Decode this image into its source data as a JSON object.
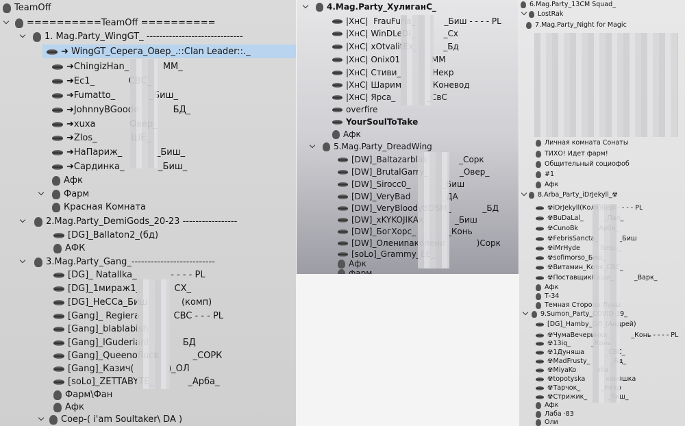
{
  "left_panel": {
    "rows": [
      "TeamOff",
      "==========TeamOff ==========",
      "1. Mag.Party_WingGT_ ------------------------------",
      "➜ WingGT_Серега_Овер_.::Clan Leader::._",
      "➜ChingizHan_            MM_",
      "➜Ес1_            СВС_",
      "➜Fumatto_            _Биш_",
      "➜JohnnyBGoode            БД_",
      "➜xuxa            Овер_",
      "➜Zlos_            ШЕ_",
      "➜НаПариж_            _Биш_",
      "➜Сардинка_            _Биш_",
      "Афк",
      "Фарм",
      "Красная Комната",
      "2.Mag.Party_DemiGods_20-23 -----------------",
      "[DG]_Ballaton2_(бд)",
      "АФК",
      "3.Mag.Party_Gang_--------------------------",
      "[DG]_ Natallka_            - - - - PL",
      "[DG]_1мираж1_            СХ_",
      "[DG]_НеССа_Биш            (комп)",
      "[Gang]_ Regiera            CBC - - - PL",
      "[Gang]_blablabish",
      "[Gang]_lGuderianl            БД",
      "[Gang]_Queenofluck            _СОРК",
      "[Gang]_Казич(            )_ОЛ",
      "[soLo]_ZETTABYTE_            _Арба_",
      "Фарм\\Фан",
      "Афк",
      "Соер-( i'am Soultaker\\ DA )"
    ]
  },
  "middle_panel": {
    "rows": [
      "4.Mag.Party_ХулиганС_",
      "|ХнС|  FrauFuria_           _Биш - - - - PL",
      "|ХнС| WinDLeDi_           _Сх",
      "|ХнС| xOtvalitEx_          _Бд",
      "|ХнС| Onix01            MM",
      "|ХнС| Стиви_            Некр",
      "|ХнС| Шарим            Коневод",
      "|ХнС| Ярса_            _СвС",
      "overfire",
      "YourSoulToTake",
      "Афк",
      "5.Mag.Party_DreadWing",
      "[DW]_Baltazarblak            _Сорк",
      "[DW]_BrutalGarry_            _Овер_",
      "[DW]_Sirocc0_            _Биш",
      "[DW]_VeryBad            _ДА",
      "[DW]_VeryBloodyBDSM_            _БД",
      "[DW]_xKYKOJIKAx            _Биш",
      "[DW]_БогХорс_            _Конь",
      "[DW]_Олениnаколени            )Сорк",
      "[soLo]_Grammy_EE_",
      "Афк",
      "фарм"
    ]
  },
  "right_panel": {
    "rows": [
      "6.Mag.Party_13CM Squad_",
      "LostRak",
      "7.Mag.Party_Night for Magic",
      "Личная комната Сонаты",
      "ТИХО! Идет фарм!",
      "Общительный социофоб",
      "#1",
      "Афк",
      "8.Arba_Party_iDrJekyll_☢",
      "☢iDrJekyll(Коля)Берс- - - - PL",
      "☢BuDaLal_          _Пал_",
      "☢CunoBk          Арба_",
      "☢FebrisSancta_          _Биш",
      "☢iMrHyde          Берс_",
      "☢sofimorso_Биш_",
      "☢Витамин_Коля_СВС_",
      "☢ПоставщикКаши_          _Варк_",
      "Афк",
      "Т-34",
      "Темная Сторона Луны",
      "9.Sumon_Party_COVID-19_",
      "[DG]_Hamby_ОЛ_(Андрей)",
      "☢ЧумаВечеринка_          _Конь - - - - PL",
      "☢13iq_          _Конь",
      "☢1Дуняша          _СВС_",
      "☢MadFrusty_          _Бд_",
      "☢MiyaKo          эба",
      "☢topotyska          коняшка",
      "☢Тарчок_          _Некр",
      "☢Стрижик_          _биш_",
      "Афк",
      "Лаба ·83",
      "Оли"
    ]
  }
}
